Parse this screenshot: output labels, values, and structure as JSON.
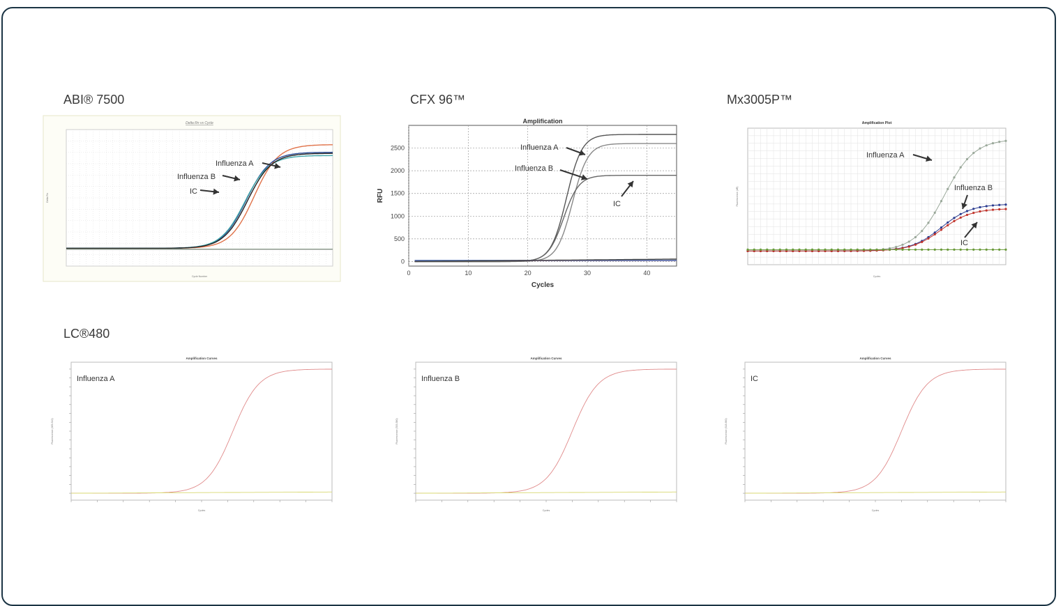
{
  "panels": {
    "abi": "ABI® 7500",
    "cfx": "CFX 96™",
    "mx": "Mx3005P™",
    "lc": "LC®480"
  },
  "chart_data": [
    {
      "id": "abi7500",
      "type": "line",
      "title": "Delta Rn vs Cycle",
      "xlabel": "Cycle Number",
      "ylabel": "Delta Rn",
      "annotations": [
        "Influenza A",
        "Influenza B",
        "IC"
      ],
      "series": [
        {
          "color": "#e0734a",
          "ct": 28.2,
          "plateau": 0.95
        },
        {
          "color": "#2d4e9a",
          "ct": 27.0,
          "plateau": 0.88
        },
        {
          "color": "#3fa5a8",
          "ct": 26.8,
          "plateau": 0.85
        },
        {
          "color": "#222222",
          "ct": 27.2,
          "plateau": 0.87
        },
        {
          "color": "#3a8a3a",
          "ct": null,
          "plateau": 0
        },
        {
          "color": "#aaaaaa",
          "ct": null,
          "plateau": 0
        }
      ]
    },
    {
      "id": "cfx96",
      "type": "line",
      "title": "Amplification",
      "xlabel": "Cycles",
      "ylabel": "RFU",
      "xticks": [
        0,
        10,
        20,
        30,
        40
      ],
      "yticks": [
        0,
        500,
        1000,
        1500,
        2000,
        2500
      ],
      "annotations": [
        "Influenza A",
        "Influenza B",
        "IC"
      ],
      "series": [
        {
          "color": "#555555",
          "ct": 26.5,
          "plateau": 2800
        },
        {
          "color": "#888888",
          "ct": 27.5,
          "plateau": 2600
        },
        {
          "color": "#666666",
          "ct": 26.0,
          "plateau": 1900
        },
        {
          "color": "#7a2f7a",
          "ct": null,
          "plateau": 0
        },
        {
          "color": "#4c6fb0",
          "ct": null,
          "plateau": 0
        },
        {
          "color": "#444444",
          "ct": null,
          "plateau": 0
        }
      ]
    },
    {
      "id": "mx3005p",
      "type": "line",
      "title": "Amplification Plot",
      "xlabel": "Cycles",
      "ylabel": "Fluorescence (dR)",
      "annotations": [
        "Influenza A",
        "Influenza B",
        "IC"
      ],
      "series": [
        {
          "color": "#9aa89a",
          "ct": 30.5,
          "plateau": 1.0,
          "markers": true
        },
        {
          "color": "#2a3b8f",
          "ct": 30.0,
          "plateau": 0.42,
          "markers": true
        },
        {
          "color": "#c0332b",
          "ct": 30.0,
          "plateau": 0.38,
          "markers": true
        },
        {
          "color": "#6a9a3a",
          "ct": null,
          "plateau": 0,
          "markers": true
        }
      ]
    },
    {
      "id": "lc480-a",
      "type": "line",
      "title": "Amplification Curves",
      "xlabel": "Cycles",
      "ylabel": "Fluorescence (465-510)",
      "annotations": [
        "Influenza A"
      ],
      "series": [
        {
          "color": "#e08a8a",
          "ct": 31,
          "plateau": 1.0
        },
        {
          "color": "#d8d870",
          "ct": null,
          "plateau": 0
        }
      ]
    },
    {
      "id": "lc480-b",
      "type": "line",
      "title": "Amplification Curves",
      "xlabel": "Cycles",
      "ylabel": "Fluorescence (533-580)",
      "annotations": [
        "Influenza B"
      ],
      "series": [
        {
          "color": "#e08a8a",
          "ct": 30,
          "plateau": 1.0
        },
        {
          "color": "#d8d870",
          "ct": null,
          "plateau": 0
        }
      ]
    },
    {
      "id": "lc480-ic",
      "type": "line",
      "title": "Amplification Curves",
      "xlabel": "Cycles",
      "ylabel": "Fluorescence (618-660)",
      "annotations": [
        "IC"
      ],
      "series": [
        {
          "color": "#e08a8a",
          "ct": 30,
          "plateau": 1.0
        },
        {
          "color": "#d8d870",
          "ct": null,
          "plateau": 0
        }
      ]
    }
  ]
}
